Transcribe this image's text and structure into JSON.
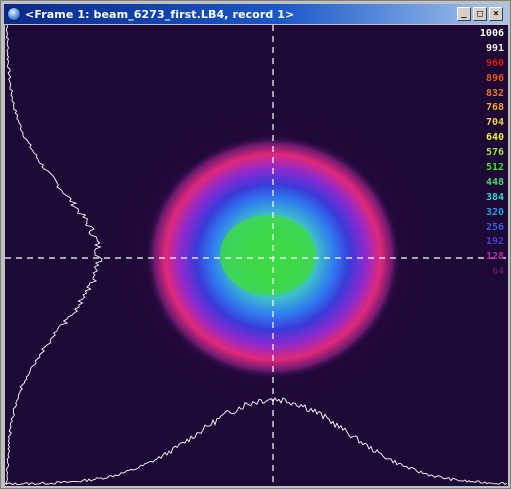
{
  "window": {
    "title": "<Frame 1: beam_6273_first.LB4, record 1>",
    "controls": [
      {
        "name": "minimize-button",
        "glyph": "_"
      },
      {
        "name": "maximize-button",
        "glyph": "□"
      },
      {
        "name": "close-button",
        "glyph": "×"
      }
    ]
  },
  "display": {
    "background_color": "#1e0836",
    "crosshair_color": "#ffffff",
    "profile_color": "#ffffff"
  },
  "legend": [
    {
      "label": "1006",
      "color": "#ffffff"
    },
    {
      "label": "991",
      "color": "#f2f2f2"
    },
    {
      "label": "960",
      "color": "#e01818"
    },
    {
      "label": "896",
      "color": "#ef5a2a"
    },
    {
      "label": "832",
      "color": "#f07a36"
    },
    {
      "label": "768",
      "color": "#f5a640"
    },
    {
      "label": "704",
      "color": "#f5d35a"
    },
    {
      "label": "640",
      "color": "#f2f04a"
    },
    {
      "label": "576",
      "color": "#9ee84a"
    },
    {
      "label": "512",
      "color": "#49e036"
    },
    {
      "label": "448",
      "color": "#4dd97a"
    },
    {
      "label": "384",
      "color": "#41d3e0"
    },
    {
      "label": "320",
      "color": "#2f9ef0"
    },
    {
      "label": "256",
      "color": "#3a5ff0"
    },
    {
      "label": "192",
      "color": "#4a3ae8"
    },
    {
      "label": "128",
      "color": "#c02ab8"
    },
    {
      "label": "64",
      "color": "#5a1e6e"
    }
  ]
}
